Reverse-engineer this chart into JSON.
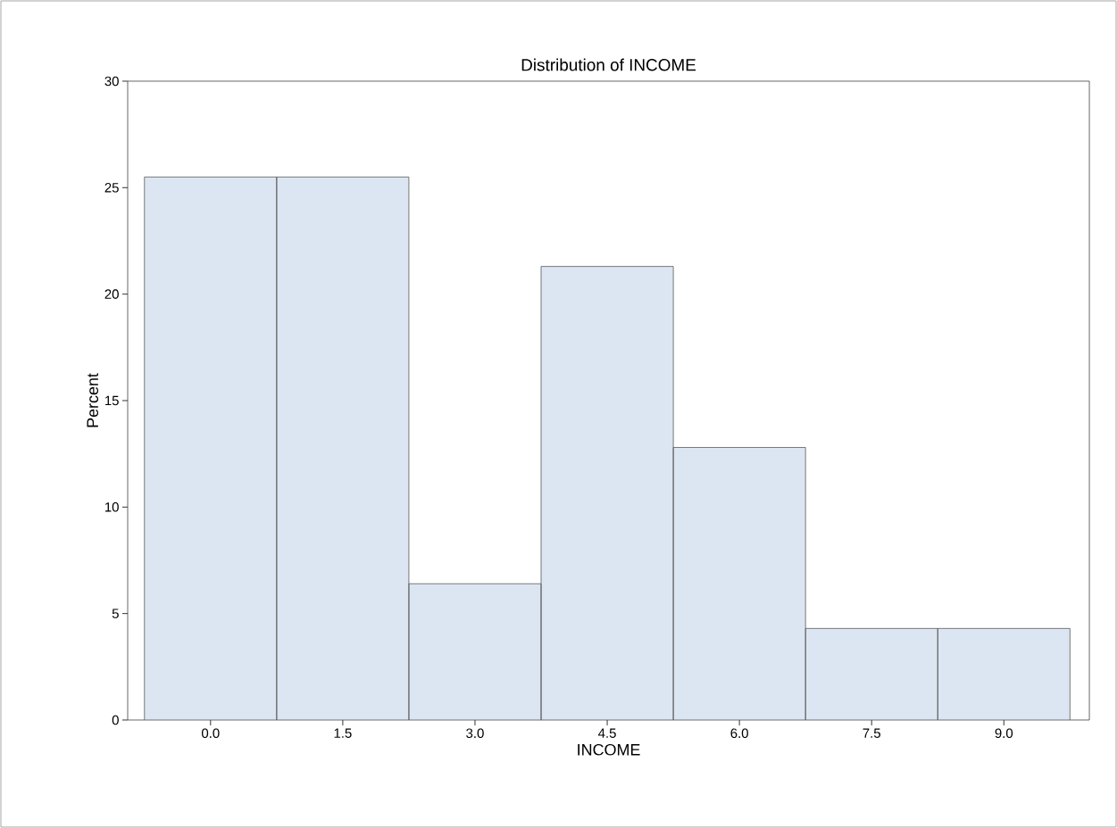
{
  "chart_data": {
    "type": "histogram",
    "title": "Distribution of INCOME",
    "xlabel": "INCOME",
    "ylabel": "Percent",
    "bins": [
      -0.75,
      0.75,
      2.25,
      3.75,
      5.25,
      6.75,
      8.25,
      9.75
    ],
    "values": [
      25.5,
      25.5,
      6.4,
      21.3,
      12.8,
      4.3,
      4.3
    ],
    "color": "#dce6f2",
    "xlim": [
      -0.94,
      9.97
    ],
    "xticks": [
      {
        "value": 0,
        "label": "0.0"
      },
      {
        "value": 1.5,
        "label": "1.5"
      },
      {
        "value": 3,
        "label": "3.0"
      },
      {
        "value": 4.5,
        "label": "4.5"
      },
      {
        "value": 6,
        "label": "6.0"
      },
      {
        "value": 7.5,
        "label": "7.5"
      },
      {
        "value": 9,
        "label": "9.0"
      }
    ],
    "ylim": [
      0,
      30
    ],
    "yticks": [
      0,
      5,
      10,
      15,
      20,
      25,
      30
    ],
    "grid": false
  }
}
